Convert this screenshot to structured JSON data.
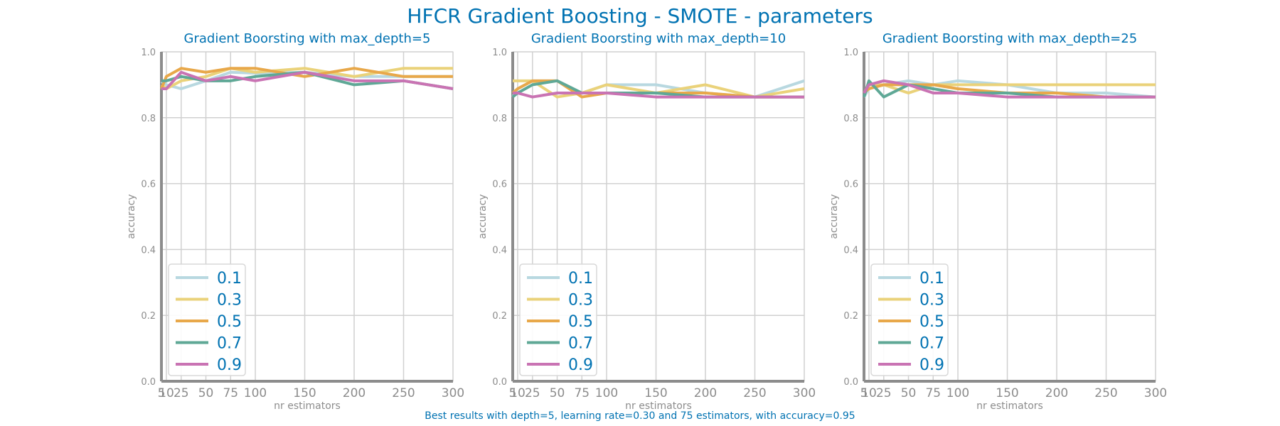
{
  "figure": {
    "title": "HFCR Gradient Boosting - SMOTE - parameters",
    "footnote": "Best results with depth=5, learning rate=0.30 and 75 estimators, with accuracy=0.95"
  },
  "colors": {
    "title": "#0072b2",
    "axis_text": "#8c8c8c",
    "grid": "#d0d0d0",
    "spine": "#8c8c8c",
    "series": [
      "#b8d8e0",
      "#ead27a",
      "#e8a84a",
      "#5fa896",
      "#c973b3"
    ]
  },
  "chart_data": [
    {
      "type": "line",
      "title": "Gradient Boorsting with max_depth=5",
      "xlabel": "nr estimators",
      "ylabel": "accuracy",
      "x": [
        5,
        10,
        25,
        50,
        75,
        100,
        150,
        200,
        250,
        300
      ],
      "xticks": [
        "5",
        "10",
        "25",
        "50",
        "75",
        "100",
        "150",
        "200",
        "250",
        "300"
      ],
      "xlim": [
        5,
        300
      ],
      "ylim": [
        0,
        1
      ],
      "yticks": [
        "0.0",
        "0.2",
        "0.4",
        "0.6",
        "0.8",
        "1.0"
      ],
      "grid": true,
      "legend_position": "lower-left",
      "series": [
        {
          "name": "0.1",
          "values": [
            0.91,
            0.9,
            0.888,
            0.912,
            0.938,
            0.935,
            0.938,
            0.925,
            0.925,
            0.925
          ]
        },
        {
          "name": "0.3",
          "values": [
            0.9,
            0.888,
            0.912,
            0.925,
            0.95,
            0.938,
            0.95,
            0.925,
            0.95,
            0.95
          ]
        },
        {
          "name": "0.5",
          "values": [
            0.888,
            0.925,
            0.95,
            0.938,
            0.95,
            0.95,
            0.925,
            0.95,
            0.925,
            0.925
          ]
        },
        {
          "name": "0.7",
          "values": [
            0.912,
            0.912,
            0.925,
            0.912,
            0.912,
            0.925,
            0.938,
            0.9,
            0.912,
            0.888
          ]
        },
        {
          "name": "0.9",
          "values": [
            0.888,
            0.888,
            0.938,
            0.912,
            0.925,
            0.912,
            0.938,
            0.912,
            0.912,
            0.888
          ]
        }
      ]
    },
    {
      "type": "line",
      "title": "Gradient Boorsting with max_depth=10",
      "xlabel": "nr estimators",
      "ylabel": "accuracy",
      "x": [
        5,
        10,
        25,
        50,
        75,
        100,
        150,
        200,
        250,
        300
      ],
      "xticks": [
        "5",
        "10",
        "25",
        "50",
        "75",
        "100",
        "150",
        "200",
        "250",
        "300"
      ],
      "xlim": [
        5,
        300
      ],
      "ylim": [
        0,
        1
      ],
      "yticks": [
        "0.0",
        "0.2",
        "0.4",
        "0.6",
        "0.8",
        "1.0"
      ],
      "grid": true,
      "legend_position": "lower-left",
      "series": [
        {
          "name": "0.1",
          "values": [
            0.863,
            0.888,
            0.912,
            0.912,
            0.875,
            0.9,
            0.9,
            0.875,
            0.863,
            0.912
          ]
        },
        {
          "name": "0.3",
          "values": [
            0.912,
            0.912,
            0.912,
            0.863,
            0.875,
            0.9,
            0.875,
            0.9,
            0.863,
            0.888
          ]
        },
        {
          "name": "0.5",
          "values": [
            0.875,
            0.888,
            0.912,
            0.912,
            0.863,
            0.875,
            0.875,
            0.875,
            0.863,
            0.863
          ]
        },
        {
          "name": "0.7",
          "values": [
            0.863,
            0.875,
            0.9,
            0.912,
            0.875,
            0.875,
            0.875,
            0.863,
            0.863,
            0.863
          ]
        },
        {
          "name": "0.9",
          "values": [
            0.875,
            0.875,
            0.863,
            0.875,
            0.875,
            0.875,
            0.863,
            0.863,
            0.863,
            0.863
          ]
        }
      ]
    },
    {
      "type": "line",
      "title": "Gradient Boorsting with max_depth=25",
      "xlabel": "nr estimators",
      "ylabel": "accuracy",
      "x": [
        5,
        10,
        25,
        50,
        75,
        100,
        150,
        200,
        250,
        300
      ],
      "xticks": [
        "5",
        "10",
        "25",
        "50",
        "75",
        "100",
        "150",
        "200",
        "250",
        "300"
      ],
      "xlim": [
        5,
        300
      ],
      "ylim": [
        0,
        1
      ],
      "yticks": [
        "0.0",
        "0.2",
        "0.4",
        "0.6",
        "0.8",
        "1.0"
      ],
      "grid": true,
      "legend_position": "lower-left",
      "series": [
        {
          "name": "0.1",
          "values": [
            0.863,
            0.888,
            0.9,
            0.912,
            0.9,
            0.912,
            0.9,
            0.875,
            0.875,
            0.863
          ]
        },
        {
          "name": "0.3",
          "values": [
            0.875,
            0.9,
            0.9,
            0.875,
            0.9,
            0.9,
            0.9,
            0.9,
            0.9,
            0.9
          ]
        },
        {
          "name": "0.5",
          "values": [
            0.875,
            0.888,
            0.9,
            0.9,
            0.9,
            0.888,
            0.875,
            0.875,
            0.863,
            0.863
          ]
        },
        {
          "name": "0.7",
          "values": [
            0.863,
            0.912,
            0.863,
            0.9,
            0.888,
            0.875,
            0.875,
            0.863,
            0.863,
            0.863
          ]
        },
        {
          "name": "0.9",
          "values": [
            0.875,
            0.9,
            0.912,
            0.9,
            0.875,
            0.875,
            0.863,
            0.863,
            0.863,
            0.863
          ]
        }
      ]
    }
  ]
}
